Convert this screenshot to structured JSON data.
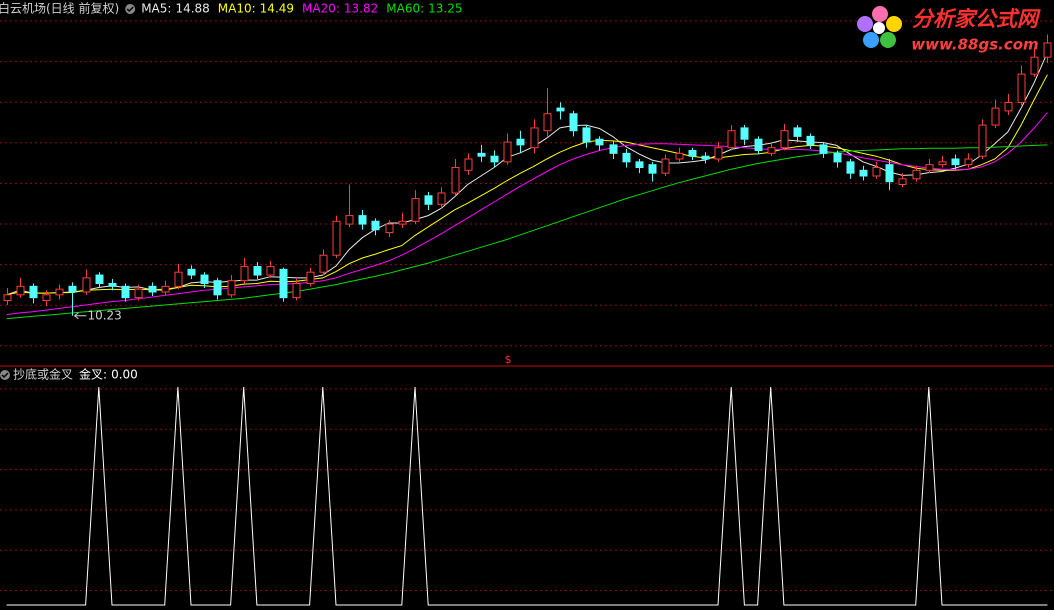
{
  "logo": {
    "name": "分析家公式网",
    "url": "www.88gs.com"
  },
  "signal_marker": "$",
  "chart_data": [
    {
      "type": "candlestick",
      "title": "白云机场(日线 前复权)",
      "up_color": "#ff3c3c",
      "down_color": "#54ffff",
      "xlim": [
        -0.5,
        79.5
      ],
      "ylim": [
        9.36,
        15.81
      ],
      "open": [
        10.5,
        10.6,
        10.75,
        10.5,
        10.6,
        10.75,
        10.65,
        10.95,
        10.8,
        10.75,
        10.55,
        10.75,
        10.65,
        10.75,
        11.05,
        10.95,
        10.85,
        10.6,
        10.85,
        11.1,
        10.95,
        11.05,
        10.55,
        10.8,
        11.0,
        11.3,
        11.85,
        12.0,
        11.9,
        11.7,
        11.85,
        11.9,
        12.35,
        12.2,
        12.4,
        12.8,
        13.1,
        13.05,
        12.95,
        13.35,
        13.2,
        13.5,
        13.9,
        13.8,
        13.55,
        13.35,
        13.25,
        13.1,
        12.95,
        12.9,
        12.75,
        13.0,
        13.15,
        13.05,
        13.0,
        13.2,
        13.55,
        13.35,
        13.1,
        13.2,
        13.55,
        13.4,
        13.25,
        13.1,
        12.95,
        12.8,
        12.7,
        12.9,
        12.55,
        12.65,
        12.8,
        12.9,
        13.0,
        12.9,
        13.05,
        13.6,
        13.85,
        14.0,
        14.5,
        14.8
      ],
      "high": [
        10.72,
        10.9,
        10.8,
        10.68,
        10.78,
        10.82,
        11.05,
        11.0,
        10.88,
        10.8,
        10.78,
        10.82,
        10.85,
        11.15,
        11.12,
        11.0,
        10.9,
        10.95,
        11.25,
        11.18,
        11.2,
        11.08,
        10.88,
        11.08,
        11.4,
        12.0,
        12.55,
        12.1,
        11.95,
        11.92,
        12.05,
        12.45,
        12.42,
        12.5,
        13.0,
        13.1,
        13.25,
        13.15,
        13.45,
        13.5,
        13.7,
        14.25,
        14.0,
        13.85,
        13.6,
        13.4,
        13.32,
        13.18,
        13.0,
        12.95,
        13.08,
        13.2,
        13.2,
        13.12,
        13.3,
        13.6,
        13.6,
        13.4,
        13.3,
        13.62,
        13.6,
        13.45,
        13.3,
        13.15,
        13.0,
        12.88,
        12.95,
        13.0,
        12.75,
        12.88,
        13.0,
        13.05,
        13.08,
        13.1,
        13.7,
        14.05,
        14.15,
        14.65,
        14.95,
        15.2
      ],
      "low": [
        10.42,
        10.55,
        10.45,
        10.4,
        10.52,
        10.23,
        10.6,
        10.72,
        10.68,
        10.48,
        10.5,
        10.58,
        10.6,
        10.7,
        10.88,
        10.72,
        10.52,
        10.55,
        10.8,
        10.88,
        10.9,
        10.48,
        10.5,
        10.75,
        10.95,
        11.25,
        11.8,
        11.75,
        11.65,
        11.62,
        11.78,
        11.85,
        12.1,
        12.12,
        12.35,
        12.72,
        12.95,
        12.85,
        12.9,
        13.1,
        13.1,
        13.4,
        13.7,
        13.4,
        13.2,
        13.15,
        13.0,
        12.85,
        12.75,
        12.6,
        12.7,
        12.95,
        12.98,
        12.92,
        12.95,
        13.15,
        13.25,
        13.08,
        13.05,
        13.15,
        13.3,
        13.18,
        13.02,
        12.85,
        12.65,
        12.62,
        12.65,
        12.45,
        12.5,
        12.6,
        12.75,
        12.85,
        12.82,
        12.85,
        13.0,
        13.55,
        13.78,
        13.95,
        14.45,
        14.7
      ],
      "close": [
        10.6,
        10.75,
        10.55,
        10.6,
        10.7,
        10.65,
        10.9,
        10.8,
        10.75,
        10.55,
        10.7,
        10.65,
        10.75,
        11.0,
        10.95,
        10.8,
        10.6,
        10.85,
        11.1,
        10.95,
        11.1,
        10.55,
        10.8,
        11.0,
        11.3,
        11.9,
        12.0,
        11.85,
        11.75,
        11.85,
        11.9,
        12.3,
        12.2,
        12.4,
        12.85,
        13.0,
        13.05,
        12.95,
        13.3,
        13.25,
        13.55,
        13.8,
        13.85,
        13.5,
        13.3,
        13.25,
        13.1,
        12.95,
        12.85,
        12.75,
        13.0,
        13.1,
        13.05,
        13.0,
        13.2,
        13.5,
        13.35,
        13.15,
        13.2,
        13.5,
        13.4,
        13.25,
        13.1,
        12.95,
        12.75,
        12.7,
        12.85,
        12.6,
        12.65,
        12.8,
        12.9,
        12.95,
        12.9,
        13.0,
        13.6,
        13.9,
        14.0,
        14.5,
        14.8,
        15.05
      ],
      "series": [
        {
          "name": "MA5:",
          "color": "#e8e8e8",
          "values": [
            10.6,
            10.68,
            10.63,
            10.63,
            10.64,
            10.65,
            10.68,
            10.73,
            10.76,
            10.73,
            10.74,
            10.69,
            10.68,
            10.73,
            10.81,
            10.83,
            10.82,
            10.84,
            10.86,
            10.86,
            10.92,
            10.91,
            10.9,
            10.9,
            10.95,
            11.11,
            11.4,
            11.61,
            11.76,
            11.87,
            11.87,
            11.93,
            12.0,
            12.13,
            12.33,
            12.55,
            12.7,
            12.85,
            13.03,
            13.11,
            13.22,
            13.37,
            13.55,
            13.59,
            13.6,
            13.54,
            13.4,
            13.22,
            13.09,
            12.98,
            12.93,
            12.93,
            12.95,
            12.98,
            13.07,
            13.17,
            13.22,
            13.24,
            13.28,
            13.34,
            13.32,
            13.3,
            13.29,
            13.24,
            13.09,
            12.95,
            12.87,
            12.77,
            12.71,
            12.72,
            12.76,
            12.78,
            12.84,
            12.91,
            13.07,
            13.27,
            13.48,
            13.9,
            14.35,
            14.88
          ]
        },
        {
          "name": "MA10:",
          "color": "#ffff00",
          "values": [
            10.6,
            10.65,
            10.63,
            10.63,
            10.64,
            10.64,
            10.68,
            10.69,
            10.7,
            10.69,
            10.7,
            10.69,
            10.7,
            10.73,
            10.77,
            10.76,
            10.74,
            10.75,
            10.79,
            10.8,
            10.84,
            10.83,
            10.84,
            10.87,
            10.9,
            11.01,
            11.15,
            11.25,
            11.32,
            11.4,
            11.47,
            11.65,
            11.8,
            11.95,
            12.1,
            12.22,
            12.35,
            12.48,
            12.62,
            12.75,
            12.87,
            13.0,
            13.12,
            13.22,
            13.3,
            13.33,
            13.32,
            13.3,
            13.25,
            13.2,
            13.15,
            13.1,
            13.05,
            13.02,
            13.02,
            13.05,
            13.08,
            13.09,
            13.12,
            13.18,
            13.22,
            13.24,
            13.23,
            13.2,
            13.15,
            13.1,
            13.05,
            12.98,
            12.9,
            12.84,
            12.81,
            12.8,
            12.8,
            12.82,
            12.9,
            13.0,
            13.2,
            13.6,
            14.05,
            14.49
          ]
        },
        {
          "name": "MA20:",
          "color": "#ff00ff",
          "values": [
            10.25,
            10.28,
            10.3,
            10.33,
            10.36,
            10.39,
            10.42,
            10.45,
            10.48,
            10.5,
            10.53,
            10.56,
            10.59,
            10.62,
            10.65,
            10.68,
            10.7,
            10.72,
            10.74,
            10.76,
            10.78,
            10.79,
            10.8,
            10.82,
            10.85,
            10.9,
            10.98,
            11.05,
            11.12,
            11.2,
            11.3,
            11.42,
            11.55,
            11.68,
            11.82,
            11.96,
            12.1,
            12.24,
            12.38,
            12.52,
            12.65,
            12.78,
            12.9,
            13.0,
            13.08,
            13.15,
            13.2,
            13.24,
            13.26,
            13.27,
            13.27,
            13.26,
            13.25,
            13.24,
            13.23,
            13.22,
            13.2,
            13.18,
            13.17,
            13.17,
            13.17,
            13.16,
            13.14,
            13.11,
            13.07,
            13.02,
            12.98,
            12.94,
            12.9,
            12.87,
            12.84,
            12.82,
            12.81,
            12.82,
            12.86,
            12.95,
            13.1,
            13.3,
            13.55,
            13.82
          ]
        },
        {
          "name": "MA60:",
          "color": "#00e000",
          "values": [
            10.18,
            10.2,
            10.22,
            10.24,
            10.26,
            10.28,
            10.3,
            10.32,
            10.34,
            10.36,
            10.38,
            10.4,
            10.42,
            10.44,
            10.46,
            10.48,
            10.5,
            10.52,
            10.54,
            10.57,
            10.6,
            10.63,
            10.66,
            10.7,
            10.74,
            10.78,
            10.83,
            10.88,
            10.93,
            10.98,
            11.04,
            11.1,
            11.16,
            11.23,
            11.3,
            11.37,
            11.44,
            11.51,
            11.58,
            11.66,
            11.74,
            11.82,
            11.9,
            11.98,
            12.06,
            12.14,
            12.22,
            12.3,
            12.37,
            12.44,
            12.51,
            12.58,
            12.64,
            12.7,
            12.76,
            12.82,
            12.87,
            12.92,
            12.96,
            13.0,
            13.04,
            13.07,
            13.1,
            13.12,
            13.14,
            13.15,
            13.16,
            13.17,
            13.18,
            13.18,
            13.19,
            13.19,
            13.19,
            13.2,
            13.2,
            13.21,
            13.22,
            13.23,
            13.24,
            13.25
          ]
        }
      ]
    },
    {
      "type": "line",
      "title": "抄底或金叉",
      "xlim": [
        -0.5,
        79.5
      ],
      "ylim": [
        0,
        1
      ],
      "series": [
        {
          "name": "金叉:",
          "color": "#ffffff",
          "current_label": "0.00",
          "values": [
            0,
            0,
            0,
            0,
            0,
            0,
            0,
            1,
            0,
            0,
            0,
            0,
            0,
            1,
            0,
            0,
            0,
            0,
            1,
            0,
            0,
            0,
            0,
            0,
            1,
            0,
            0,
            0,
            0,
            0,
            0,
            1,
            0,
            0,
            0,
            0,
            0,
            0,
            0,
            0,
            0,
            0,
            0,
            0,
            0,
            0,
            0,
            0,
            0,
            0,
            0,
            0,
            0,
            0,
            0,
            1,
            0,
            0,
            1,
            0,
            0,
            0,
            0,
            0,
            0,
            0,
            0,
            0,
            0,
            0,
            1,
            0,
            0,
            0,
            0,
            0,
            0,
            0,
            0,
            0
          ]
        }
      ]
    }
  ]
}
